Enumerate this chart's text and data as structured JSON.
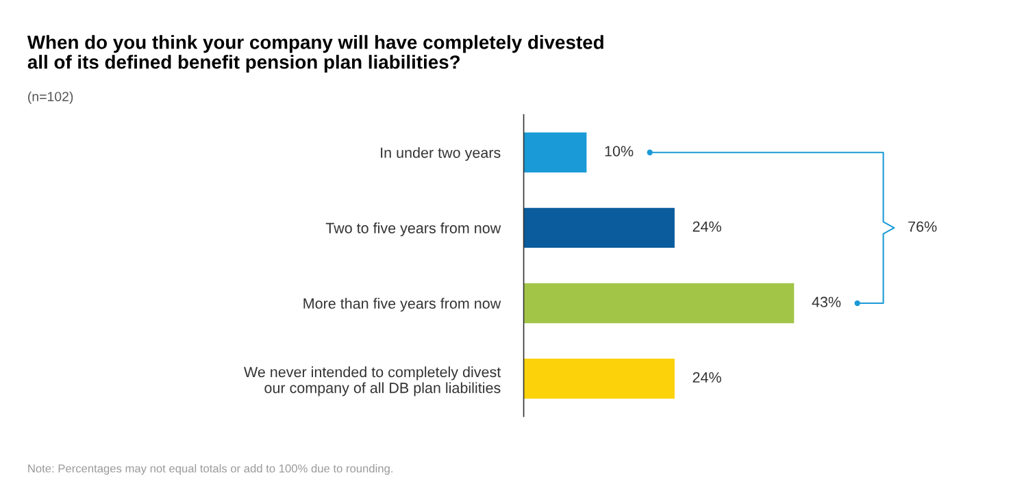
{
  "chart_data": {
    "type": "bar",
    "orientation": "horizontal",
    "title": "When do you think your company will have completely divested\nall of its defined benefit pension plan liabilities?",
    "subtitle": "(n=102)",
    "categories": [
      "In under two years",
      "Two to five years from now",
      "More than five years from now",
      "We never intended to completely divest\nour company of all DB plan liabilities"
    ],
    "values": [
      10,
      24,
      43,
      24
    ],
    "colors": [
      "#1a9ad6",
      "#0b5c9c",
      "#a2c548",
      "#fcd20b"
    ],
    "value_labels": [
      "10%",
      "24%",
      "43%",
      "24%"
    ],
    "annotations": [
      "76%",
      "Note: Percentages may not equal totals or add to 100% due to rounding."
    ],
    "tick_labels": "y",
    "grid": false
  }
}
